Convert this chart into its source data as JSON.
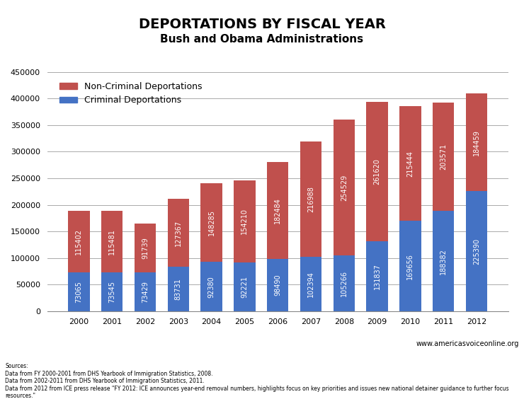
{
  "title": "DEPORTATIONS BY FISCAL YEAR",
  "subtitle": "Bush and Obama Administrations",
  "years": [
    "2000",
    "2001",
    "2002",
    "2003",
    "2004",
    "2005",
    "2006",
    "2007",
    "2008",
    "2009",
    "2010",
    "2011",
    "2012"
  ],
  "criminal": [
    73065,
    73545,
    73429,
    83731,
    92380,
    92221,
    98490,
    102394,
    105266,
    131837,
    169656,
    188382,
    225390
  ],
  "non_criminal": [
    115402,
    115481,
    91739,
    127367,
    148285,
    154210,
    182484,
    216988,
    254529,
    261620,
    215444,
    203571,
    184459
  ],
  "criminal_color": "#4472C4",
  "non_criminal_color": "#C0504D",
  "bar_width": 0.65,
  "ylim": [
    0,
    450000
  ],
  "yticks": [
    0,
    50000,
    100000,
    150000,
    200000,
    250000,
    300000,
    350000,
    400000,
    450000
  ],
  "background_color": "#FFFFFF",
  "grid_color": "#AAAAAA",
  "title_fontsize": 14,
  "subtitle_fontsize": 11,
  "legend_fontsize": 9,
  "tick_fontsize": 8,
  "label_fontsize": 7,
  "source_text": "Sources:\nData from FY 2000-2001 from DHS Yearbook of Immigration Statistics, 2008.\nData from 2002-2011 from DHS Yearbook of Immigration Statistics, 2011.\nData from 2012 from ICE press release \"FY 2012: ICE announces year-end removal numbers, highlights focus on key priorities and issues new national detainer guidance to further focus\nresources.\"",
  "website_text": "www.americasvoiceonline.org"
}
